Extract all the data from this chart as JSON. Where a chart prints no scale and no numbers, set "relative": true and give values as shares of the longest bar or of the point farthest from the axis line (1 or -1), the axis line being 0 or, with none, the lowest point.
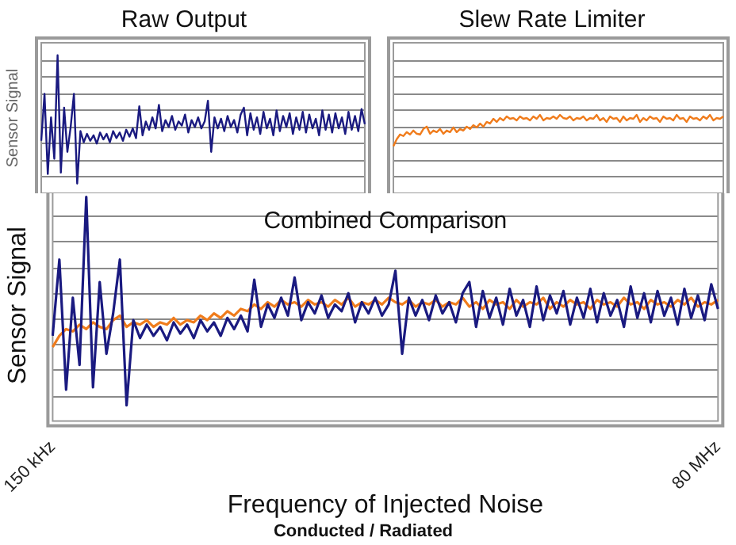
{
  "chart_data": [
    {
      "type": "line",
      "title": "Raw Output",
      "ylabel": "Sensor Signal",
      "relative": true,
      "grid": "y",
      "marker": "none",
      "tick_labels": false,
      "categories": [
        null,
        null,
        null,
        null,
        null,
        null,
        null,
        null,
        null,
        null,
        null,
        null,
        null,
        null,
        null,
        null,
        null,
        null,
        null,
        null,
        null,
        null,
        null,
        null,
        null,
        null,
        null,
        null,
        null,
        null,
        null,
        null,
        null,
        null,
        null,
        null,
        null,
        null,
        null,
        null,
        null,
        null,
        null,
        null,
        null,
        null,
        null,
        null,
        null,
        null,
        null,
        null,
        null,
        null,
        null,
        null,
        null,
        null,
        null,
        null,
        null,
        null,
        null,
        null,
        null,
        null,
        null,
        null,
        null,
        null,
        null,
        null,
        null,
        null,
        null,
        null,
        null,
        null,
        null,
        null,
        null,
        null,
        null,
        null,
        null,
        null,
        null,
        null,
        null,
        null,
        null,
        null,
        null,
        null,
        null,
        null,
        null,
        null,
        null,
        null
      ],
      "series": [
        {
          "color": "#1a1a80",
          "values": [
            0.38,
            0.72,
            0.14,
            0.55,
            0.25,
            1.0,
            0.15,
            0.62,
            0.3,
            0.48,
            0.72,
            0.07,
            0.45,
            0.37,
            0.43,
            0.38,
            0.42,
            0.36,
            0.44,
            0.39,
            0.43,
            0.37,
            0.45,
            0.4,
            0.44,
            0.38,
            0.46,
            0.41,
            0.47,
            0.4,
            0.63,
            0.42,
            0.52,
            0.46,
            0.55,
            0.47,
            0.64,
            0.45,
            0.53,
            0.48,
            0.56,
            0.46,
            0.52,
            0.49,
            0.57,
            0.44,
            0.53,
            0.48,
            0.55,
            0.47,
            0.52,
            0.67,
            0.3,
            0.55,
            0.47,
            0.54,
            0.45,
            0.56,
            0.48,
            0.53,
            0.44,
            0.57,
            0.62,
            0.42,
            0.58,
            0.46,
            0.55,
            0.43,
            0.59,
            0.47,
            0.54,
            0.42,
            0.6,
            0.45,
            0.56,
            0.48,
            0.58,
            0.43,
            0.55,
            0.46,
            0.59,
            0.44,
            0.57,
            0.47,
            0.54,
            0.42,
            0.6,
            0.46,
            0.57,
            0.44,
            0.58,
            0.47,
            0.55,
            0.43,
            0.59,
            0.46,
            0.56,
            0.45,
            0.61,
            0.5
          ]
        }
      ]
    },
    {
      "type": "line",
      "title": "Slew Rate Limiter",
      "relative": true,
      "grid": "y",
      "marker": "none",
      "tick_labels": false,
      "categories": [
        null,
        null,
        null,
        null,
        null,
        null,
        null,
        null,
        null,
        null,
        null,
        null,
        null,
        null,
        null,
        null,
        null,
        null,
        null,
        null,
        null,
        null,
        null,
        null,
        null,
        null,
        null,
        null,
        null,
        null,
        null,
        null,
        null,
        null,
        null,
        null,
        null,
        null,
        null,
        null,
        null,
        null,
        null,
        null,
        null,
        null,
        null,
        null,
        null,
        null,
        null,
        null,
        null,
        null,
        null,
        null,
        null,
        null,
        null,
        null,
        null,
        null,
        null,
        null,
        null,
        null,
        null,
        null,
        null,
        null,
        null,
        null,
        null,
        null,
        null,
        null,
        null,
        null,
        null,
        null,
        null,
        null,
        null,
        null,
        null,
        null,
        null,
        null,
        null,
        null,
        null,
        null,
        null,
        null,
        null,
        null,
        null,
        null,
        null,
        null
      ],
      "series": [
        {
          "color": "#f07c1c",
          "values": [
            0.6,
            0.69,
            0.75,
            0.73,
            0.78,
            0.75,
            0.8,
            0.76,
            0.75,
            0.82,
            0.85,
            0.76,
            0.8,
            0.78,
            0.82,
            0.76,
            0.8,
            0.78,
            0.84,
            0.78,
            0.82,
            0.8,
            0.85,
            0.82,
            0.87,
            0.84,
            0.89,
            0.85,
            0.91,
            0.89,
            0.95,
            0.91,
            0.96,
            0.93,
            0.98,
            0.95,
            0.96,
            0.93,
            0.98,
            0.95,
            0.96,
            0.93,
            0.98,
            0.95,
            1.0,
            0.93,
            0.96,
            0.95,
            0.98,
            0.95,
            1.0,
            0.96,
            0.95,
            0.98,
            0.93,
            0.96,
            0.95,
            0.98,
            0.93,
            0.96,
            0.95,
            1.0,
            0.93,
            0.96,
            0.91,
            0.98,
            0.95,
            0.96,
            0.91,
            0.98,
            0.93,
            0.96,
            0.95,
            1.0,
            0.91,
            0.96,
            0.93,
            0.98,
            0.95,
            0.96,
            0.91,
            0.98,
            0.95,
            0.96,
            0.93,
            1.0,
            0.95,
            0.96,
            0.91,
            0.98,
            0.95,
            0.96,
            0.93,
            0.98,
            0.95,
            1.0,
            0.93,
            0.96,
            0.95,
            0.98
          ]
        }
      ]
    },
    {
      "type": "line",
      "title": "Combined Comparison",
      "ylabel": "Sensor Signal",
      "xlabel": "Frequency of Injected Noise",
      "annotations": [
        "Conducted / Radiated"
      ],
      "relative": true,
      "grid": "y",
      "marker": "none",
      "tick_labels": "x",
      "categories": [
        "150 kHz",
        null,
        null,
        null,
        null,
        null,
        null,
        null,
        null,
        null,
        null,
        null,
        null,
        null,
        null,
        null,
        null,
        null,
        null,
        null,
        null,
        null,
        null,
        null,
        null,
        null,
        null,
        null,
        null,
        null,
        null,
        null,
        null,
        null,
        null,
        null,
        null,
        null,
        null,
        null,
        null,
        null,
        null,
        null,
        null,
        null,
        null,
        null,
        null,
        null,
        null,
        null,
        null,
        null,
        null,
        null,
        null,
        null,
        null,
        null,
        null,
        null,
        null,
        null,
        null,
        null,
        null,
        null,
        null,
        null,
        null,
        null,
        null,
        null,
        null,
        null,
        null,
        null,
        null,
        null,
        null,
        null,
        null,
        null,
        null,
        null,
        null,
        null,
        null,
        null,
        null,
        null,
        null,
        null,
        null,
        null,
        null,
        null,
        null,
        "80 MHz"
      ],
      "series": [
        {
          "color": "#1a1a80",
          "values": [
            0.38,
            0.72,
            0.14,
            0.55,
            0.25,
            1.0,
            0.15,
            0.62,
            0.3,
            0.48,
            0.72,
            0.07,
            0.45,
            0.37,
            0.43,
            0.38,
            0.42,
            0.36,
            0.44,
            0.39,
            0.43,
            0.37,
            0.45,
            0.4,
            0.44,
            0.38,
            0.46,
            0.41,
            0.47,
            0.4,
            0.63,
            0.42,
            0.52,
            0.46,
            0.55,
            0.47,
            0.64,
            0.45,
            0.53,
            0.48,
            0.56,
            0.46,
            0.52,
            0.49,
            0.57,
            0.44,
            0.53,
            0.48,
            0.55,
            0.47,
            0.52,
            0.67,
            0.3,
            0.55,
            0.47,
            0.54,
            0.45,
            0.56,
            0.48,
            0.53,
            0.44,
            0.57,
            0.62,
            0.42,
            0.58,
            0.46,
            0.55,
            0.43,
            0.59,
            0.47,
            0.54,
            0.42,
            0.6,
            0.45,
            0.56,
            0.48,
            0.58,
            0.43,
            0.55,
            0.46,
            0.59,
            0.44,
            0.57,
            0.47,
            0.54,
            0.42,
            0.6,
            0.46,
            0.57,
            0.44,
            0.58,
            0.47,
            0.55,
            0.43,
            0.59,
            0.46,
            0.56,
            0.45,
            0.61,
            0.5
          ]
        },
        {
          "color": "#f07c1c",
          "values": [
            0.33,
            0.38,
            0.41,
            0.4,
            0.43,
            0.41,
            0.44,
            0.42,
            0.41,
            0.45,
            0.47,
            0.42,
            0.44,
            0.43,
            0.45,
            0.42,
            0.44,
            0.43,
            0.46,
            0.43,
            0.45,
            0.44,
            0.47,
            0.45,
            0.48,
            0.46,
            0.49,
            0.47,
            0.5,
            0.49,
            0.52,
            0.5,
            0.53,
            0.51,
            0.54,
            0.52,
            0.53,
            0.51,
            0.54,
            0.52,
            0.53,
            0.51,
            0.54,
            0.52,
            0.55,
            0.51,
            0.53,
            0.52,
            0.54,
            0.52,
            0.55,
            0.53,
            0.52,
            0.54,
            0.51,
            0.53,
            0.52,
            0.54,
            0.51,
            0.53,
            0.52,
            0.55,
            0.51,
            0.53,
            0.5,
            0.54,
            0.52,
            0.53,
            0.5,
            0.54,
            0.51,
            0.53,
            0.52,
            0.55,
            0.5,
            0.53,
            0.51,
            0.54,
            0.52,
            0.53,
            0.5,
            0.54,
            0.52,
            0.53,
            0.51,
            0.55,
            0.52,
            0.53,
            0.5,
            0.54,
            0.52,
            0.53,
            0.51,
            0.54,
            0.52,
            0.55,
            0.51,
            0.53,
            0.52,
            0.54
          ]
        }
      ]
    }
  ]
}
